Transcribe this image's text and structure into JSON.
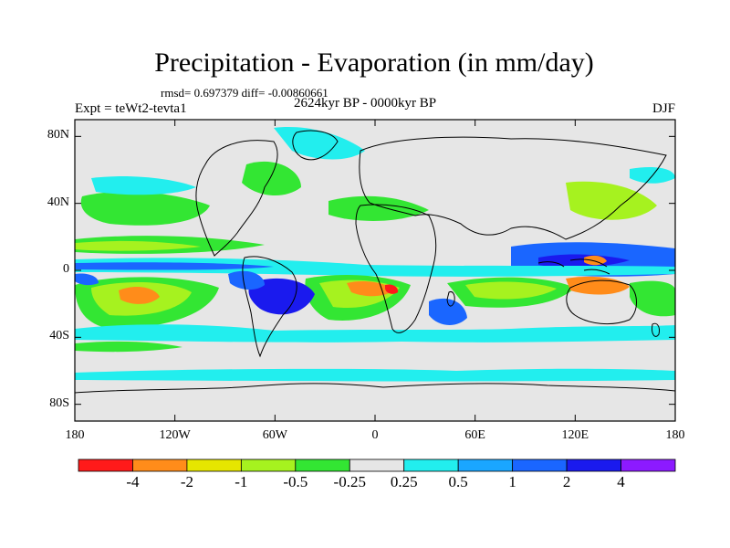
{
  "title": "Precipitation - Evaporation (in mm/day)",
  "stats": "rmsd= 0.697379 diff= -0.00860661",
  "period": "2624kyr BP - 0000kyr BP",
  "experiment": "Expt = teWt2-tevta1",
  "season": "DJF",
  "lat_ticks": [
    {
      "label": "80N",
      "value": 80
    },
    {
      "label": "40N",
      "value": 40
    },
    {
      "label": "0",
      "value": 0
    },
    {
      "label": "40S",
      "value": -40
    },
    {
      "label": "80S",
      "value": -80
    }
  ],
  "lon_ticks": [
    {
      "label": "180",
      "value": -180
    },
    {
      "label": "120W",
      "value": -120
    },
    {
      "label": "60W",
      "value": -60
    },
    {
      "label": "0",
      "value": 0
    },
    {
      "label": "60E",
      "value": 60
    },
    {
      "label": "120E",
      "value": 120
    },
    {
      "label": "180",
      "value": 180
    }
  ],
  "colorbar": {
    "colors": [
      "#ff1a1a",
      "#ff8c1a",
      "#e6e600",
      "#a6f21f",
      "#33e633",
      "#e6e6e6",
      "#22eeee",
      "#1aa6ff",
      "#1a66ff",
      "#1a1aee",
      "#8c1aff"
    ],
    "labels": [
      "-4",
      "-2",
      "-1",
      "-0.5",
      "-0.25",
      "0.25",
      "0.5",
      "1",
      "2",
      "4"
    ]
  }
}
